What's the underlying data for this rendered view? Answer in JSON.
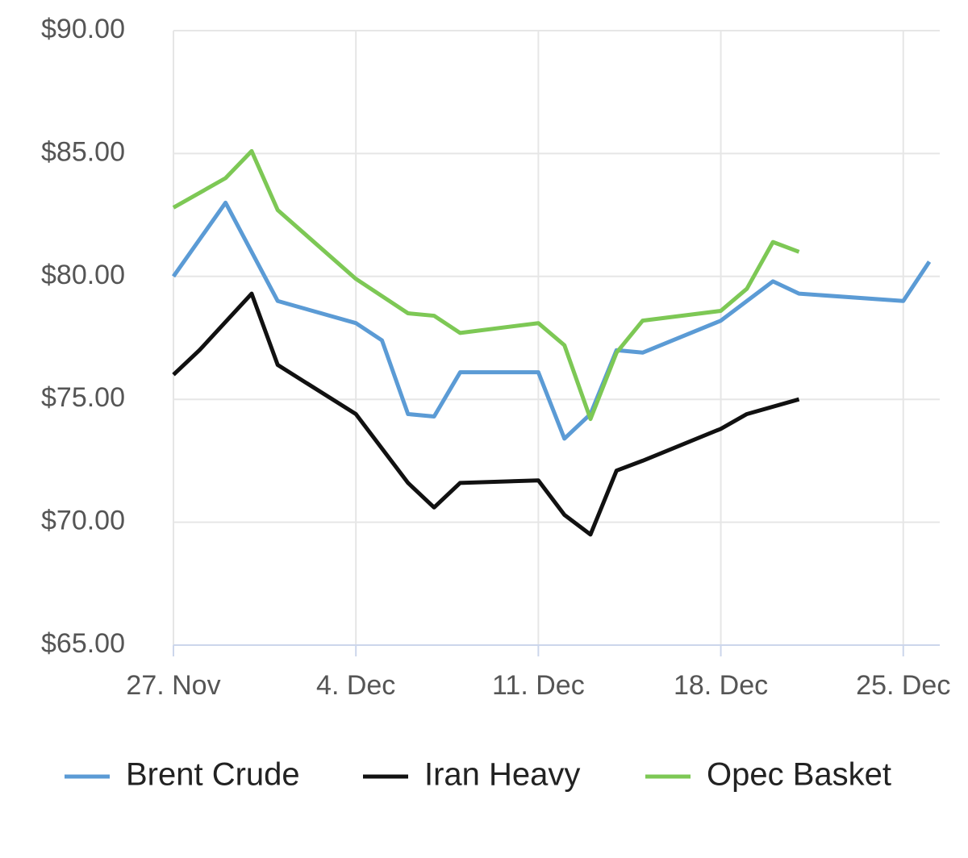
{
  "chart_data": {
    "type": "line",
    "xlim": [
      0,
      29.4
    ],
    "xticks": [
      {
        "value": 0,
        "label": "27. Nov"
      },
      {
        "value": 7,
        "label": "4. Dec"
      },
      {
        "value": 14,
        "label": "11. Dec"
      },
      {
        "value": 21,
        "label": "18. Dec"
      },
      {
        "value": 28,
        "label": "25. Dec"
      }
    ],
    "ylim": [
      65,
      90
    ],
    "yticks": [
      {
        "value": 65,
        "label": "$65.00"
      },
      {
        "value": 70,
        "label": "$70.00"
      },
      {
        "value": 75,
        "label": "$75.00"
      },
      {
        "value": 80,
        "label": "$80.00"
      },
      {
        "value": 85,
        "label": "$85.00"
      },
      {
        "value": 90,
        "label": "$90.00"
      }
    ],
    "grid": true,
    "legend": "bottom",
    "series": [
      {
        "name": "Brent Crude",
        "color": "#5b9bd5",
        "x": [
          0,
          2,
          4,
          7,
          8,
          9,
          10,
          11,
          14,
          15,
          16,
          17,
          18,
          21,
          23,
          24,
          28,
          29
        ],
        "values": [
          80.0,
          83.0,
          79.0,
          78.1,
          77.4,
          74.4,
          74.3,
          76.1,
          76.1,
          73.4,
          74.4,
          77.0,
          76.9,
          78.2,
          79.8,
          79.3,
          79.0,
          80.6
        ]
      },
      {
        "name": "Iran Heavy",
        "color": "#111111",
        "x": [
          0,
          1,
          3,
          4,
          7,
          9,
          10,
          11,
          14,
          15,
          16,
          17,
          18,
          21,
          22,
          24
        ],
        "values": [
          76.0,
          77.0,
          79.3,
          76.4,
          74.4,
          71.6,
          70.6,
          71.6,
          71.7,
          70.3,
          69.5,
          72.1,
          72.5,
          73.8,
          74.4,
          75.0
        ]
      },
      {
        "name": "Opec Basket",
        "color": "#7dc855",
        "x": [
          0,
          2,
          3,
          4,
          7,
          9,
          10,
          11,
          14,
          15,
          16,
          17,
          18,
          21,
          22,
          23,
          24
        ],
        "values": [
          82.8,
          84.0,
          85.1,
          82.7,
          79.9,
          78.5,
          78.4,
          77.7,
          78.1,
          77.2,
          74.2,
          76.9,
          78.2,
          78.6,
          79.5,
          81.4,
          81.0
        ]
      }
    ]
  }
}
